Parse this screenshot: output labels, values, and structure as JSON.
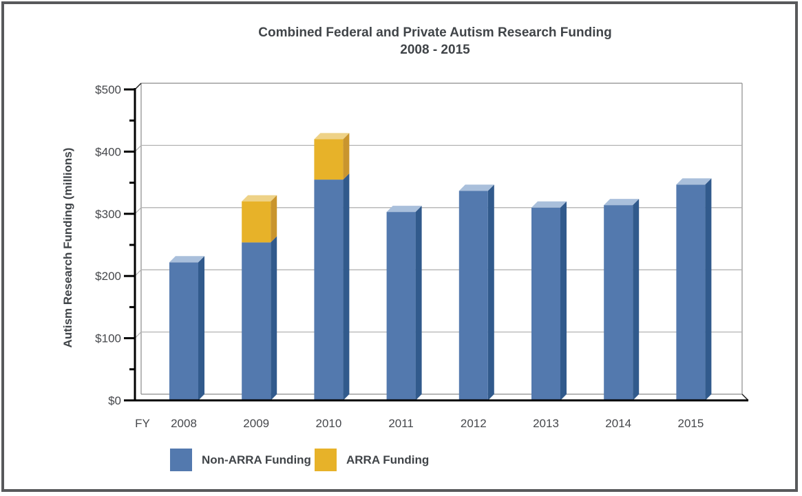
{
  "frame": {
    "border_color": "#58595B",
    "background": "#FFFFFF"
  },
  "chart_data": {
    "type": "bar",
    "stacked": true,
    "effect_3d": true,
    "title_line1": "Combined Federal and Private Autism Research Funding",
    "title_line2": "2008 - 2015",
    "ylabel": "Autism Research Funding (millions)",
    "x_prefix": "FY",
    "categories": [
      "2008",
      "2009",
      "2010",
      "2011",
      "2012",
      "2013",
      "2014",
      "2015"
    ],
    "series": [
      {
        "name": "Non-ARRA Funding",
        "color": "#5379AE",
        "color_side": "#315A8C",
        "color_top": "#A9BFDB",
        "values": [
          222,
          254,
          355,
          303,
          337,
          310,
          314,
          347
        ]
      },
      {
        "name": "ARRA Funding",
        "color": "#E7B229",
        "color_side": "#C9952E",
        "color_top": "#EED287",
        "values": [
          0,
          66,
          65,
          0,
          0,
          0,
          0,
          0
        ]
      }
    ],
    "totals": [
      222,
      320,
      420,
      303,
      337,
      310,
      314,
      347
    ],
    "ylim": [
      0,
      500
    ],
    "y_ticks": {
      "labels": [
        "$0",
        "$100",
        "$200",
        "$300",
        "$400",
        "$500"
      ],
      "values": [
        0,
        100,
        200,
        300,
        400,
        500
      ]
    },
    "minor_tick_values": [
      50,
      150,
      250,
      350,
      450
    ],
    "grid": true,
    "gridline_values": [
      100,
      200,
      300,
      400
    ],
    "legend_position": "bottom",
    "colors": {
      "gridline": "#B3B3B3",
      "wall_line": "#8A8A8A",
      "axis_line": "#000000",
      "text": "#45474B"
    }
  }
}
